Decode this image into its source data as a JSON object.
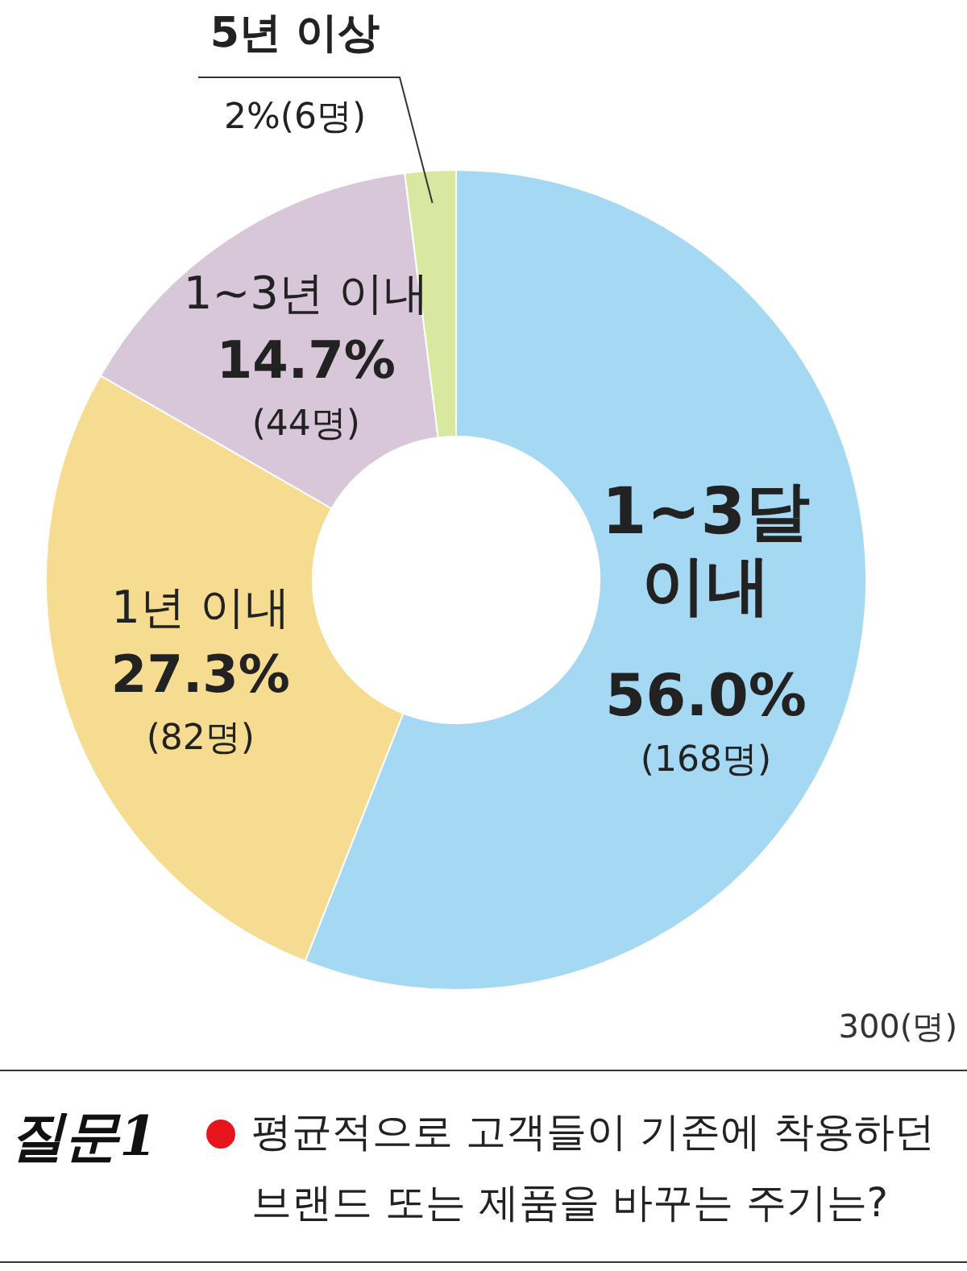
{
  "chart_data": {
    "type": "donut",
    "title": "평균적으로 고객들이 기존에 착용하던 브랜드 또는 제품을 바꾸는 주기는?",
    "categories": [
      "1~3달 이내",
      "1년 이내",
      "1~3년 이내",
      "5년 이상"
    ],
    "values": [
      56.0,
      27.3,
      14.7,
      2
    ],
    "colors": [
      "#a5d8f3",
      "#f6dc90",
      "#d8c7d9",
      "#d8e8a0"
    ],
    "value_labels": [
      "56.0%\n(168명)",
      "27.3%\n(82명)",
      "14.7%\n(44명)",
      "2%(6명)"
    ],
    "annotations": [
      "300(명)",
      "질문1"
    ],
    "legend": false
  }
}
